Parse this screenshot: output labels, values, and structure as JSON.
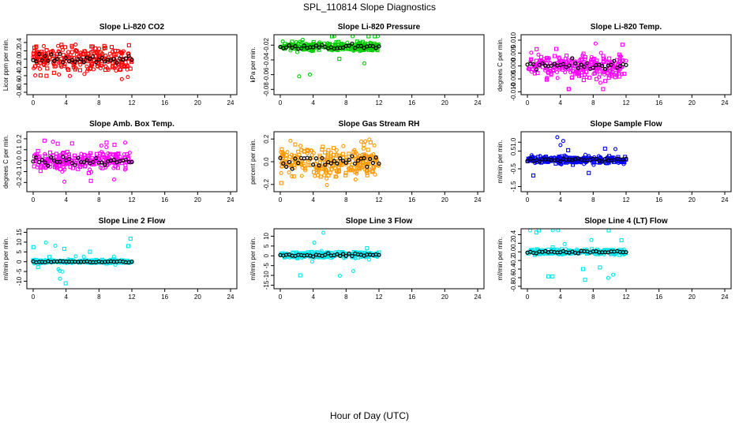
{
  "figure": {
    "title": "SPL_110814  Slope Diagnostics",
    "xlabel": "Hour of Day (UTC)"
  },
  "chart_data": [
    {
      "type": "scatter",
      "title": "Slope Li-820 CO2",
      "ylabel": "Licor ppm per min.",
      "color": "#ff0000",
      "xlim": [
        0,
        24
      ],
      "xticks": [
        0,
        4,
        8,
        12,
        16,
        20,
        24
      ],
      "ylim": [
        -0.82,
        0.55
      ],
      "yticks": [
        -0.8,
        -0.6,
        -0.4,
        -0.2,
        0.0,
        0.2,
        0.4
      ],
      "ytick_labels": [
        "-0.8",
        "-0.6",
        "-0.4",
        "-0.2",
        "0.0",
        "0.2",
        "0.4"
      ],
      "spread": 0.32,
      "outlier": 0.5,
      "x_range": [
        0,
        12
      ],
      "y_center": 0.0
    },
    {
      "type": "scatter",
      "title": "Slope Li-820 Pressure",
      "ylabel": "kPa per min.",
      "color": "#00cc00",
      "xlim": [
        0,
        24
      ],
      "xticks": [
        0,
        4,
        8,
        12,
        16,
        20,
        24
      ],
      "ylim": [
        -0.085,
        -0.008
      ],
      "yticks": [
        -0.08,
        -0.06,
        -0.04,
        -0.02
      ],
      "ytick_labels": [
        "-0.08",
        "-0.06",
        "-0.04",
        "-0.02"
      ],
      "spread": 0.006,
      "outlier": 0.05,
      "x_range": [
        0,
        12
      ],
      "y_center": -0.022
    },
    {
      "type": "scatter",
      "title": "Slope Li-820 Temp.",
      "ylabel": "degrees C per min.",
      "color": "#ff00ff",
      "xlim": [
        0,
        24
      ],
      "xticks": [
        0,
        4,
        8,
        12,
        16,
        20,
        24
      ],
      "ylim": [
        -0.0105,
        0.0115
      ],
      "yticks": [
        -0.01,
        -0.005,
        0.0,
        0.005,
        0.01
      ],
      "ytick_labels": [
        "-0.010",
        "-0.005",
        "0.000",
        "0.005",
        "0.010"
      ],
      "spread": 0.0045,
      "outlier": 0.009,
      "x_range": [
        0,
        12
      ],
      "y_center": 0.0
    },
    {
      "type": "scatter",
      "title": "Slope Amb. Box Temp.",
      "ylabel": "degrees C per min.",
      "color": "#ff00ff",
      "xlim": [
        0,
        24
      ],
      "xticks": [
        0,
        4,
        8,
        12,
        16,
        20,
        24
      ],
      "ylim": [
        -0.27,
        0.25
      ],
      "yticks": [
        -0.2,
        -0.1,
        0.0,
        0.1,
        0.2
      ],
      "ytick_labels": [
        "-0.2",
        "-0.1",
        "0.0",
        "0.1",
        "0.2"
      ],
      "spread": 0.08,
      "outlier": 0.2,
      "x_range": [
        0,
        12
      ],
      "y_center": 0.0
    },
    {
      "type": "scatter",
      "title": "Slope Gas Stream RH",
      "ylabel": "percent per min.",
      "color": "#ff9900",
      "xlim": [
        0,
        24
      ],
      "xticks": [
        0,
        4,
        8,
        12,
        16,
        20,
        24
      ],
      "ylim": [
        -0.25,
        0.25
      ],
      "yticks": [
        -0.2,
        0.0,
        0.2
      ],
      "ytick_labels": [
        "-0.2",
        "0.0",
        "0.2"
      ],
      "spread": 0.13,
      "outlier": 0.22,
      "x_range": [
        0,
        12
      ],
      "y_center": 0.0
    },
    {
      "type": "scatter",
      "title": "Slope Sample Flow",
      "ylabel": "ml/min per min.",
      "color": "#0000ff",
      "xlim": [
        0,
        24
      ],
      "xticks": [
        0,
        4,
        8,
        12,
        16,
        20,
        24
      ],
      "ylim": [
        -1.7,
        1.5
      ],
      "yticks": [
        -1.5,
        -0.5,
        0.5,
        1.0
      ],
      "ytick_labels": [
        "-1.5",
        "-0.5",
        "0.5",
        "1.0"
      ],
      "spread": 0.2,
      "outlier": 1.3,
      "x_range": [
        0,
        12
      ],
      "y_center": 0.0
    },
    {
      "type": "scatter",
      "title": "Slope Line 2 Flow",
      "ylabel": "ml/min per min.",
      "color": "#00e5ee",
      "xlim": [
        0,
        24
      ],
      "xticks": [
        0,
        4,
        8,
        12,
        16,
        20,
        24
      ],
      "ylim": [
        -13,
        16
      ],
      "yticks": [
        -10,
        -5,
        0,
        5,
        10,
        15
      ],
      "ytick_labels": [
        "-10",
        "-5",
        "0",
        "5",
        "10",
        "15"
      ],
      "spread": 0.8,
      "outlier": 12,
      "x_range": [
        0,
        12
      ],
      "y_center": 0.0
    },
    {
      "type": "scatter",
      "title": "Slope Line 3 Flow",
      "ylabel": "ml/min per min.",
      "color": "#00e5ee",
      "xlim": [
        0,
        24
      ],
      "xticks": [
        0,
        4,
        8,
        12,
        16,
        20,
        24
      ],
      "ylim": [
        -16,
        13
      ],
      "yticks": [
        -15,
        -10,
        -5,
        0,
        5,
        10
      ],
      "ytick_labels": [
        "-15",
        "-10",
        "-5",
        "0",
        "5",
        "10"
      ],
      "spread": 1.5,
      "outlier": 12,
      "x_range": [
        0,
        12
      ],
      "y_center": 0.5
    },
    {
      "type": "scatter",
      "title": "Slope Line 4 (LT) Flow",
      "ylabel": "ml/min per min.",
      "color": "#00e5ee",
      "xlim": [
        0,
        24
      ],
      "xticks": [
        0,
        4,
        8,
        12,
        16,
        20,
        24
      ],
      "ylim": [
        -0.82,
        0.5
      ],
      "yticks": [
        -0.8,
        -0.6,
        -0.4,
        -0.2,
        0.0,
        0.2,
        0.4
      ],
      "ytick_labels": [
        "-0.8",
        "-0.6",
        "-0.4",
        "-0.2",
        "0.0",
        "0.2",
        "0.4"
      ],
      "spread": 0.06,
      "outlier": 0.7,
      "x_range": [
        0,
        12
      ],
      "y_center": 0.0
    }
  ]
}
